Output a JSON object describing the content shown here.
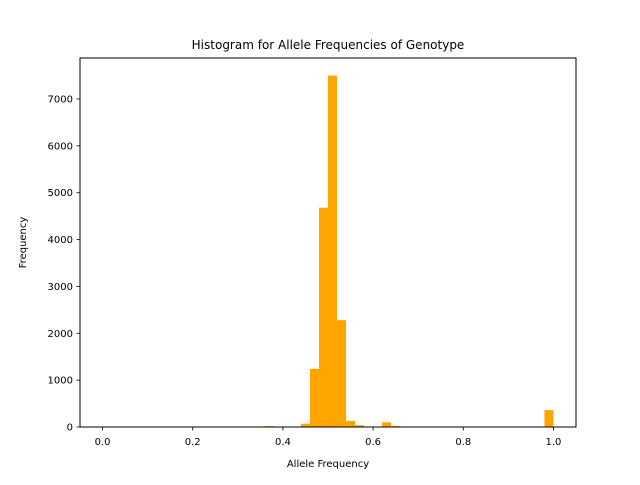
{
  "chart_data": {
    "type": "bar",
    "title": "Histogram for Allele Frequencies of Genotype",
    "xlabel": "Allele Frequency",
    "ylabel": "Frequency",
    "xlim": [
      -0.05,
      1.05
    ],
    "ylim": [
      0,
      7875
    ],
    "xticks": [
      0.0,
      0.2,
      0.4,
      0.6,
      0.8,
      1.0
    ],
    "xtick_labels": [
      "0.0",
      "0.2",
      "0.4",
      "0.6",
      "0.8",
      "1.0"
    ],
    "yticks": [
      0,
      1000,
      2000,
      3000,
      4000,
      5000,
      6000,
      7000
    ],
    "ytick_labels": [
      "0",
      "1000",
      "2000",
      "3000",
      "4000",
      "5000",
      "6000",
      "7000"
    ],
    "bin_width": 0.02,
    "bins": [
      {
        "x0": 0.36,
        "x1": 0.38,
        "count": 20
      },
      {
        "x0": 0.38,
        "x1": 0.4,
        "count": 5
      },
      {
        "x0": 0.42,
        "x1": 0.44,
        "count": 8
      },
      {
        "x0": 0.44,
        "x1": 0.46,
        "count": 70
      },
      {
        "x0": 0.46,
        "x1": 0.48,
        "count": 1240
      },
      {
        "x0": 0.48,
        "x1": 0.5,
        "count": 4680
      },
      {
        "x0": 0.5,
        "x1": 0.52,
        "count": 7500
      },
      {
        "x0": 0.52,
        "x1": 0.54,
        "count": 2280
      },
      {
        "x0": 0.54,
        "x1": 0.56,
        "count": 130
      },
      {
        "x0": 0.56,
        "x1": 0.58,
        "count": 40
      },
      {
        "x0": 0.6,
        "x1": 0.62,
        "count": 10
      },
      {
        "x0": 0.62,
        "x1": 0.64,
        "count": 100
      },
      {
        "x0": 0.64,
        "x1": 0.66,
        "count": 20
      },
      {
        "x0": 0.98,
        "x1": 1.0,
        "count": 360
      }
    ],
    "bar_color": "#ffa500",
    "grid": false,
    "legend": "none"
  }
}
